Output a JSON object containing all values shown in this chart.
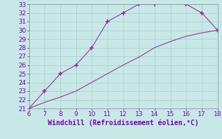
{
  "xlabel": "Windchill (Refroidissement éolien,°C)",
  "line1_x": [
    6,
    7,
    8,
    9,
    10,
    11,
    12,
    13,
    14,
    15,
    16,
    17,
    18
  ],
  "line1_y": [
    21,
    23,
    25,
    26,
    28,
    31,
    32,
    33,
    33,
    33.2,
    33,
    32,
    30
  ],
  "line2_x": [
    6,
    7,
    8,
    9,
    10,
    11,
    12,
    13,
    14,
    15,
    16,
    17,
    18
  ],
  "line2_y": [
    21,
    21.7,
    22.3,
    23.0,
    24.0,
    25.0,
    26.0,
    26.9,
    28.0,
    28.7,
    29.3,
    29.7,
    30
  ],
  "xlim": [
    6,
    18
  ],
  "ylim": [
    21,
    33
  ],
  "xticks": [
    6,
    7,
    8,
    9,
    10,
    11,
    12,
    13,
    14,
    15,
    16,
    17,
    18
  ],
  "yticks": [
    21,
    22,
    23,
    24,
    25,
    26,
    27,
    28,
    29,
    30,
    31,
    32,
    33
  ],
  "line_color": "#993399",
  "bg_color": "#c8e8e8",
  "grid_color": "#aacccc",
  "tick_label_color": "#7700aa",
  "xlabel_color": "#7700aa",
  "marker": "+",
  "markersize": 4,
  "linewidth": 0.8,
  "xlabel_fontsize": 7,
  "tick_fontsize": 6.5
}
